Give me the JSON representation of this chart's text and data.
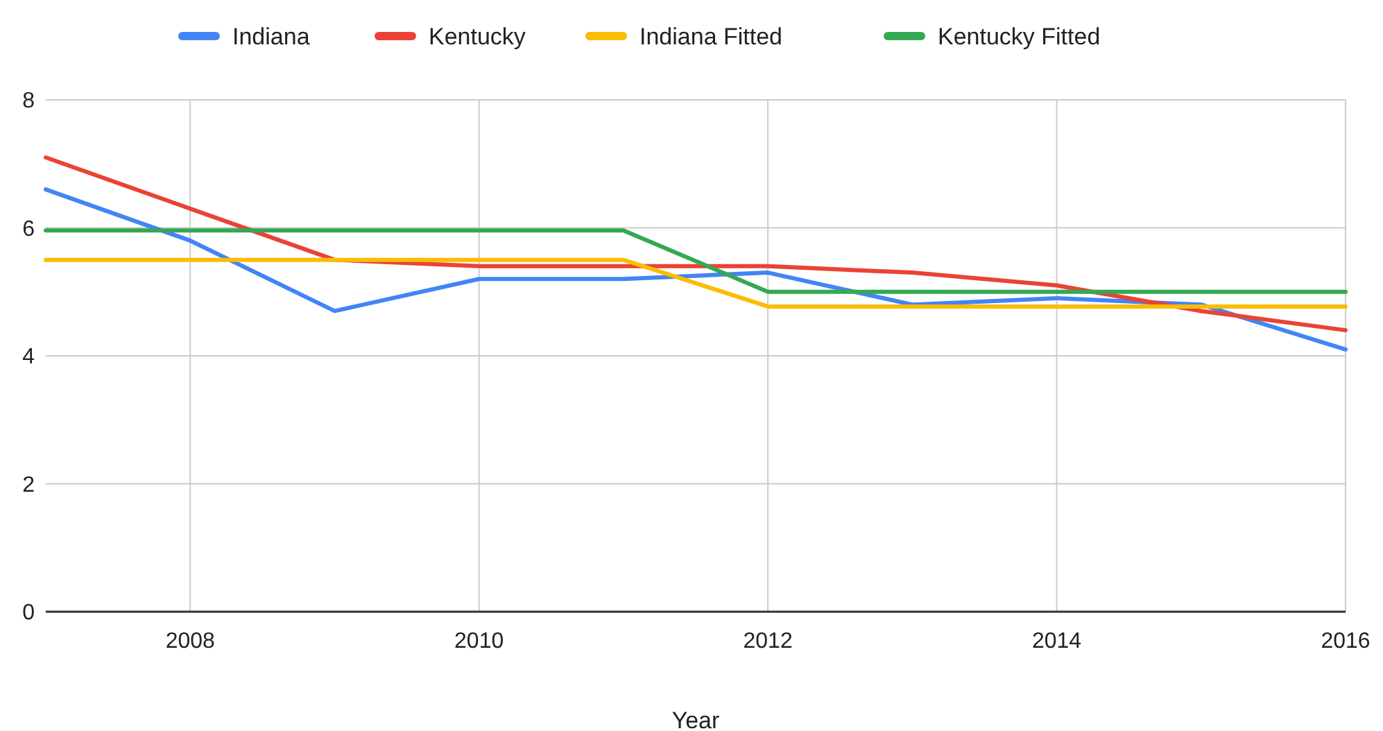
{
  "chart_data": {
    "type": "line",
    "xlabel": "Year",
    "x": [
      2007,
      2008,
      2009,
      2010,
      2011,
      2012,
      2013,
      2014,
      2015,
      2016
    ],
    "series": [
      {
        "name": "Indiana",
        "color": "#4285f4",
        "values": [
          6.6,
          5.8,
          4.7,
          5.2,
          5.2,
          5.3,
          4.8,
          4.9,
          4.8,
          4.1
        ]
      },
      {
        "name": "Kentucky",
        "color": "#ea4335",
        "values": [
          7.1,
          6.3,
          5.5,
          5.4,
          5.4,
          5.4,
          5.3,
          5.1,
          4.7,
          4.4
        ]
      },
      {
        "name": "Indiana Fitted",
        "color": "#fbbc04",
        "values": [
          5.5,
          5.5,
          5.5,
          5.5,
          5.5,
          4.77,
          4.77,
          4.77,
          4.77,
          4.77
        ]
      },
      {
        "name": "Kentucky Fitted",
        "color": "#34a853",
        "values": [
          5.96,
          5.96,
          5.96,
          5.96,
          5.96,
          5.0,
          5.0,
          5.0,
          5.0,
          5.0
        ]
      }
    ],
    "xlim": [
      2007,
      2016
    ],
    "xticks": [
      2008,
      2010,
      2012,
      2014,
      2016
    ],
    "ylim": [
      0,
      8
    ],
    "yticks": [
      0,
      2,
      4,
      6,
      8
    ],
    "grid": true,
    "legend": "top",
    "marker": "none",
    "line_style": "solid"
  }
}
